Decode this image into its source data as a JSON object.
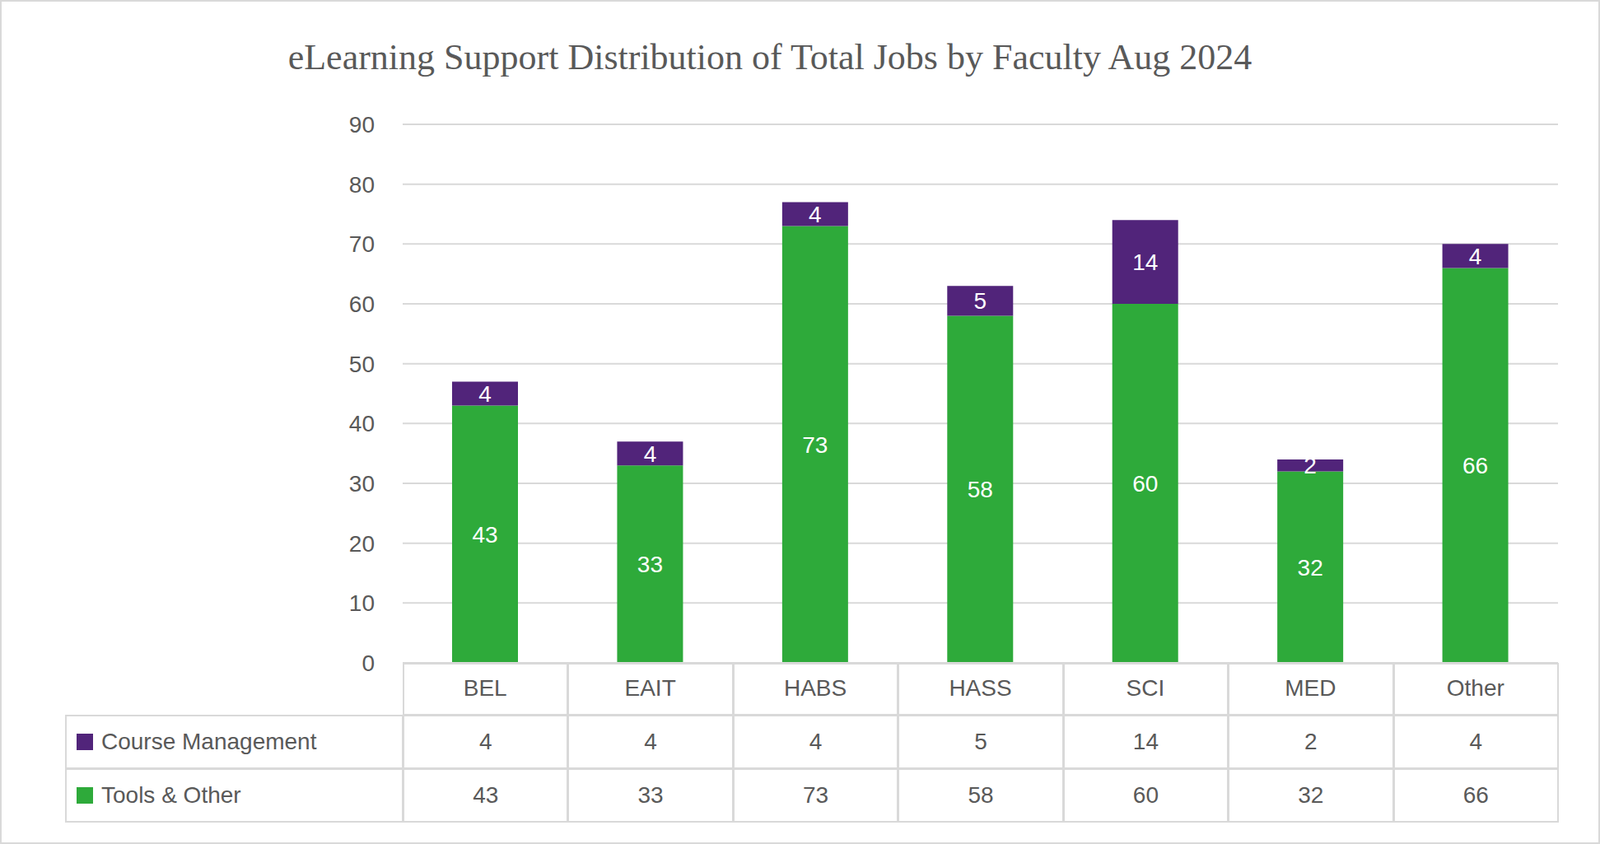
{
  "chart_data": {
    "type": "bar",
    "title": "eLearning Support Distribution of Total Jobs by Faculty Aug 2024",
    "categories": [
      "BEL",
      "EAIT",
      "HABS",
      "HASS",
      "SCI",
      "MED",
      "Other"
    ],
    "series": [
      {
        "name": "Course Management",
        "color": "#51247a",
        "values": [
          4,
          4,
          4,
          5,
          14,
          2,
          4
        ]
      },
      {
        "name": "Tools & Other",
        "color": "#2eaa3a",
        "values": [
          43,
          33,
          73,
          58,
          60,
          32,
          66
        ]
      }
    ],
    "ylim": [
      0,
      90
    ],
    "yticks": [
      0,
      10,
      20,
      30,
      40,
      50,
      60,
      70,
      80,
      90
    ],
    "grid": true,
    "stacked": true,
    "data_labels": true
  }
}
